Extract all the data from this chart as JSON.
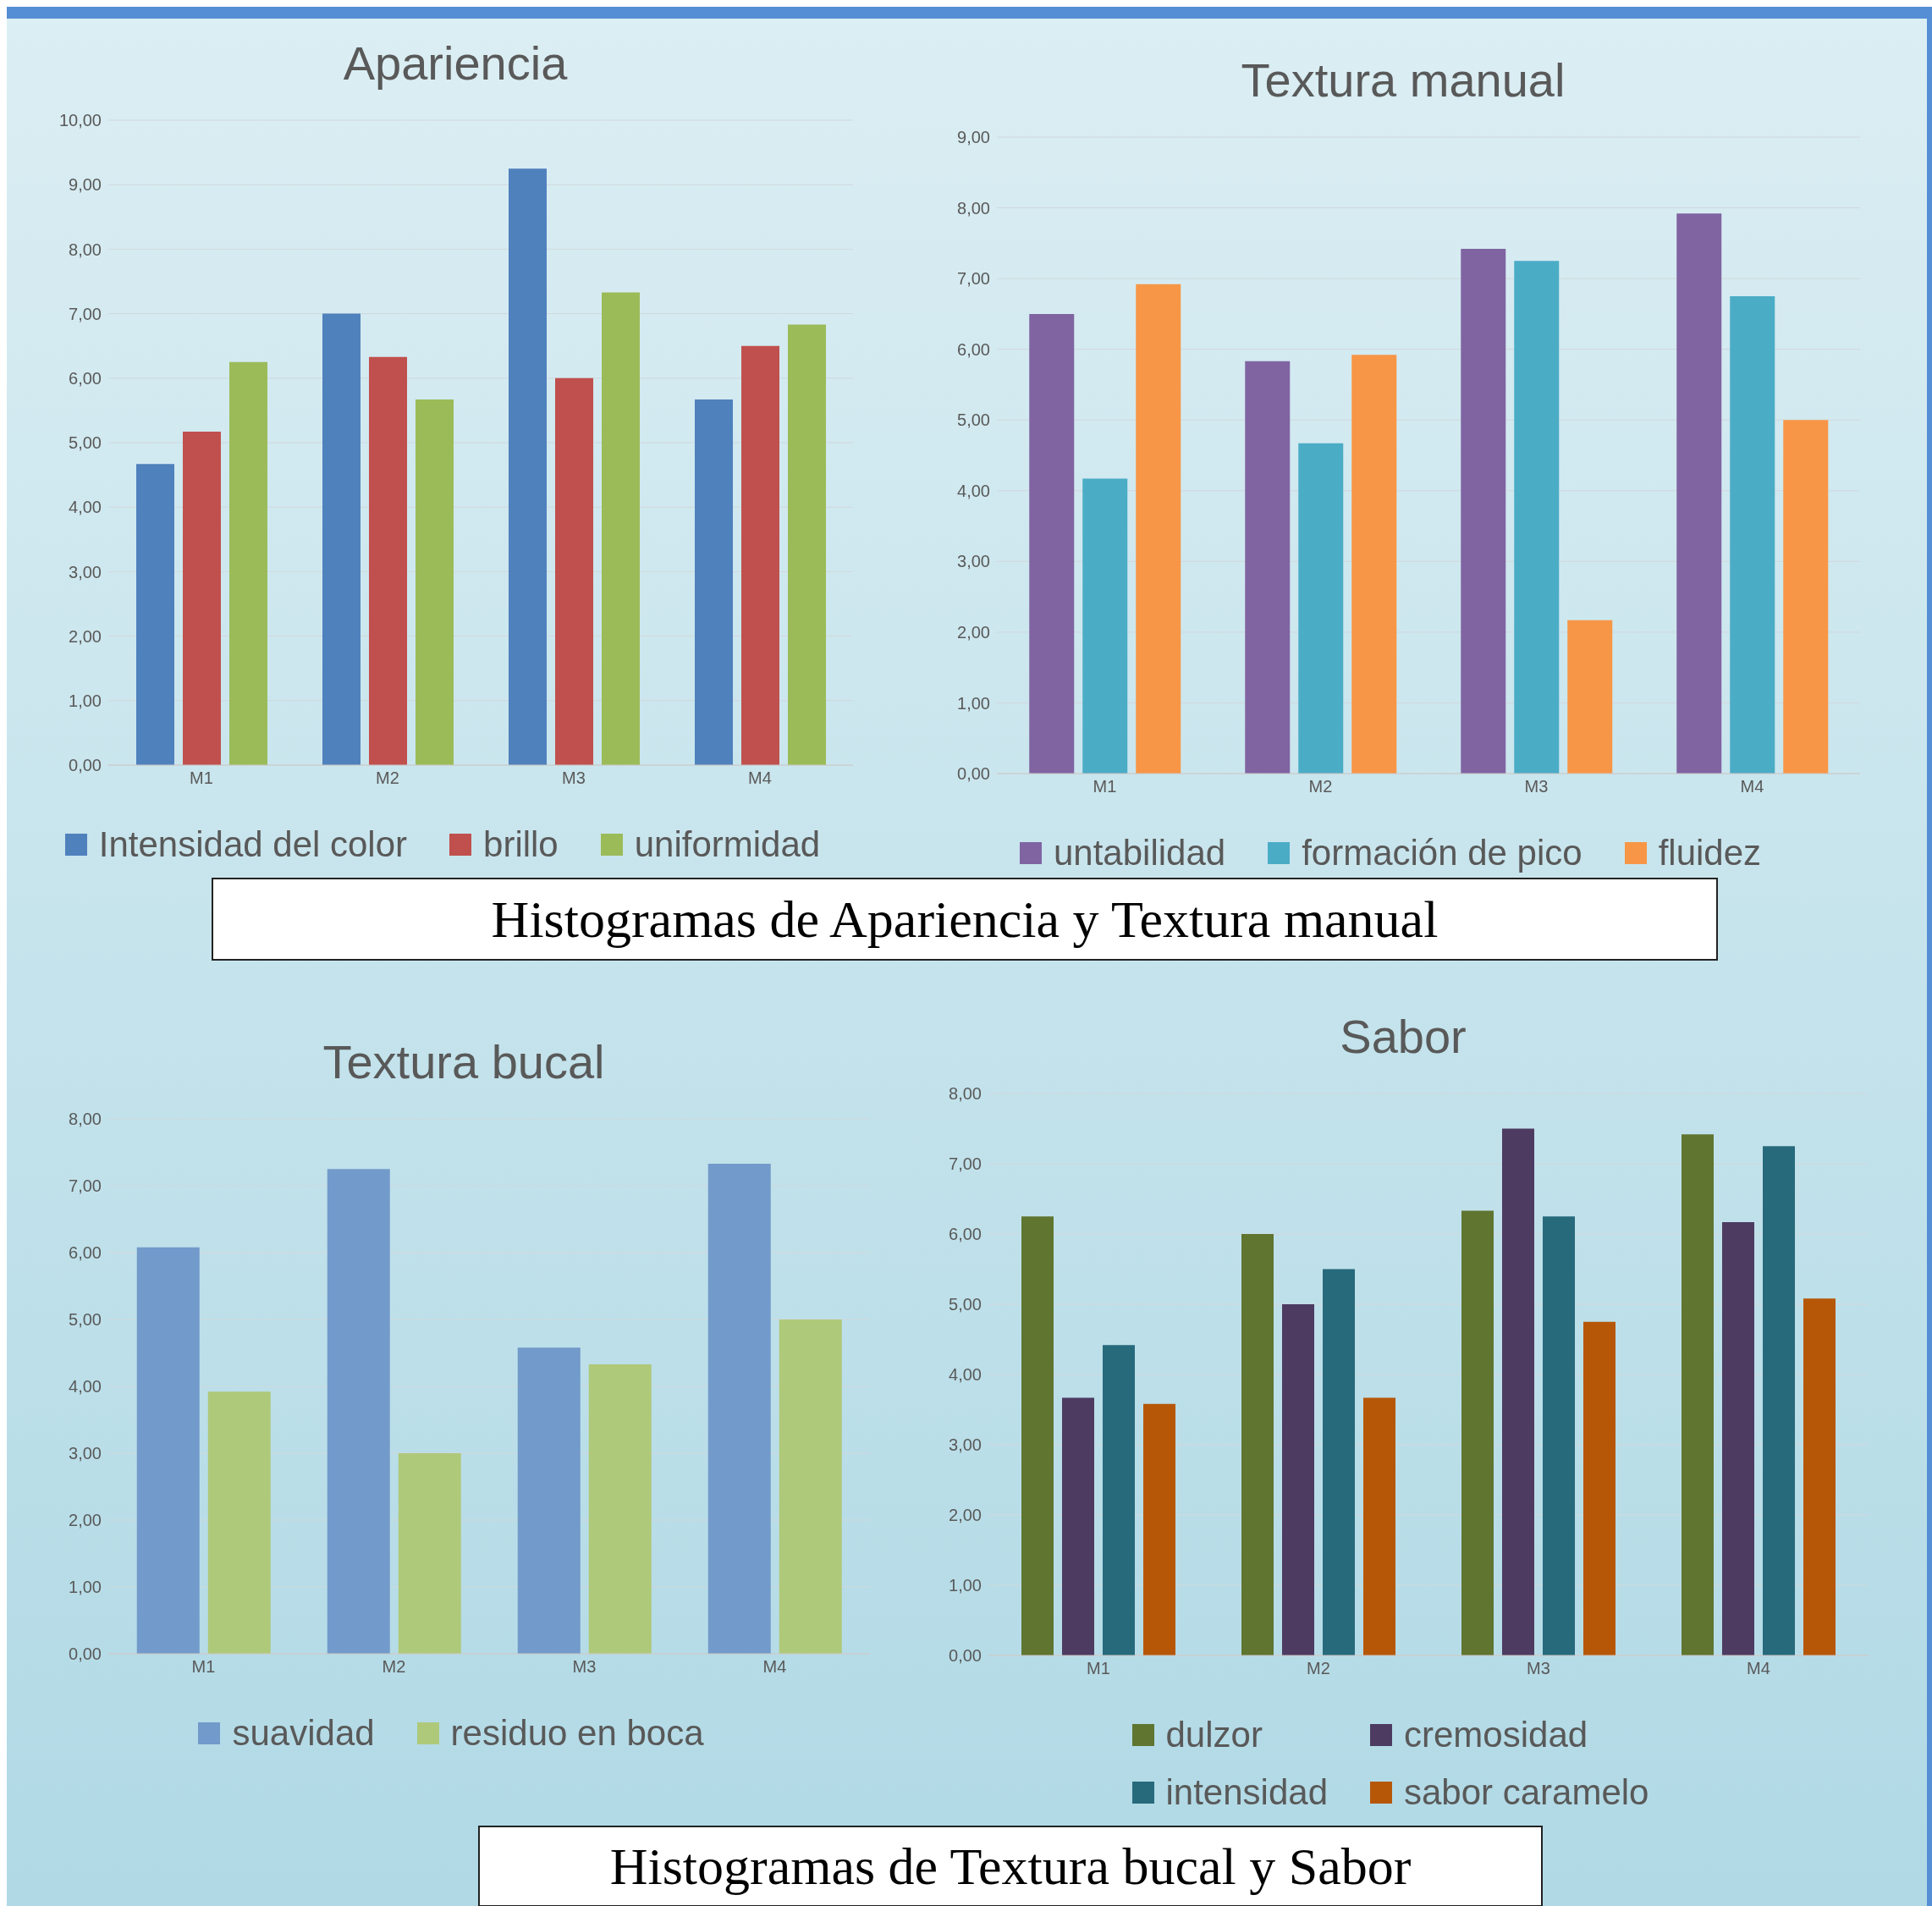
{
  "chart_data": [
    {
      "type": "bar",
      "title": "Apariencia",
      "categories": [
        "M1",
        "M2",
        "M3",
        "M4"
      ],
      "series": [
        {
          "name": "Intensidad del color",
          "color": "#4f81bd",
          "values": [
            4.67,
            7.0,
            9.25,
            5.67
          ]
        },
        {
          "name": "brillo",
          "color": "#c0504d",
          "values": [
            5.17,
            6.33,
            6.0,
            6.5
          ]
        },
        {
          "name": "uniformidad",
          "color": "#9bbb59",
          "values": [
            6.25,
            5.67,
            7.33,
            6.83
          ]
        }
      ],
      "ylim": [
        0,
        10
      ],
      "yticks": [
        {
          "value": 0,
          "label": "0,00"
        },
        {
          "value": 1,
          "label": "1,00"
        },
        {
          "value": 2,
          "label": "2,00"
        },
        {
          "value": 3,
          "label": "3,00"
        },
        {
          "value": 4,
          "label": "4,00"
        },
        {
          "value": 5,
          "label": "5,00"
        },
        {
          "value": 6,
          "label": "6,00"
        },
        {
          "value": 7,
          "label": "7,00"
        },
        {
          "value": 8,
          "label": "8,00"
        },
        {
          "value": 9,
          "label": "9,00"
        },
        {
          "value": 10,
          "label": "10,00"
        }
      ],
      "grid": "y",
      "legend": "bottom",
      "annotations": [
        "Histogramas de Apariencia y Textura manual"
      ]
    },
    {
      "type": "bar",
      "title": "Textura manual",
      "categories": [
        "M1",
        "M2",
        "M3",
        "M4"
      ],
      "series": [
        {
          "name": "untabilidad",
          "color": "#8064a2",
          "values": [
            6.5,
            5.83,
            7.42,
            7.92
          ]
        },
        {
          "name": "formación de pico",
          "color": "#4bacc6",
          "values": [
            4.17,
            4.67,
            7.25,
            6.75
          ]
        },
        {
          "name": "fluidez",
          "color": "#f79646",
          "values": [
            6.92,
            5.92,
            2.17,
            5.0
          ]
        }
      ],
      "ylim": [
        0,
        9
      ],
      "yticks": [
        {
          "value": 0,
          "label": "0,00"
        },
        {
          "value": 1,
          "label": "1,00"
        },
        {
          "value": 2,
          "label": "2,00"
        },
        {
          "value": 3,
          "label": "3,00"
        },
        {
          "value": 4,
          "label": "4,00"
        },
        {
          "value": 5,
          "label": "5,00"
        },
        {
          "value": 6,
          "label": "6,00"
        },
        {
          "value": 7,
          "label": "7,00"
        },
        {
          "value": 8,
          "label": "8,00"
        },
        {
          "value": 9,
          "label": "9,00"
        }
      ],
      "grid": "y",
      "legend": "bottom"
    },
    {
      "type": "bar",
      "title": "Textura bucal",
      "categories": [
        "M1",
        "M2",
        "M3",
        "M4"
      ],
      "series": [
        {
          "name": "suavidad",
          "color": "#729aca",
          "values": [
            6.08,
            7.25,
            4.58,
            7.33
          ]
        },
        {
          "name": "residuo en boca",
          "color": "#afc97a",
          "values": [
            3.92,
            3.0,
            4.33,
            5.0
          ]
        }
      ],
      "ylim": [
        0,
        8
      ],
      "yticks": [
        {
          "value": 0,
          "label": "0,00"
        },
        {
          "value": 1,
          "label": "1,00"
        },
        {
          "value": 2,
          "label": "2,00"
        },
        {
          "value": 3,
          "label": "3,00"
        },
        {
          "value": 4,
          "label": "4,00"
        },
        {
          "value": 5,
          "label": "5,00"
        },
        {
          "value": 6,
          "label": "6,00"
        },
        {
          "value": 7,
          "label": "7,00"
        },
        {
          "value": 8,
          "label": "8,00"
        }
      ],
      "grid": "y",
      "legend": "bottom",
      "annotations": [
        "Histogramas de Textura bucal y Sabor"
      ]
    },
    {
      "type": "bar",
      "title": "Sabor",
      "categories": [
        "M1",
        "M2",
        "M3",
        "M4"
      ],
      "series": [
        {
          "name": "dulzor",
          "color": "#5f7530",
          "values": [
            6.25,
            6.0,
            6.33,
            7.42
          ]
        },
        {
          "name": "cremosidad",
          "color": "#4d3b62",
          "values": [
            3.67,
            5.0,
            7.5,
            6.17
          ]
        },
        {
          "name": "intensidad",
          "color": "#276a7c",
          "values": [
            4.42,
            5.5,
            6.25,
            7.25
          ]
        },
        {
          "name": "sabor caramelo",
          "color": "#b65708",
          "values": [
            3.58,
            3.67,
            4.75,
            5.08
          ]
        }
      ],
      "ylim": [
        0,
        8
      ],
      "yticks": [
        {
          "value": 0,
          "label": "0,00"
        },
        {
          "value": 1,
          "label": "1,00"
        },
        {
          "value": 2,
          "label": "2,00"
        },
        {
          "value": 3,
          "label": "3,00"
        },
        {
          "value": 4,
          "label": "4,00"
        },
        {
          "value": 5,
          "label": "5,00"
        },
        {
          "value": 6,
          "label": "6,00"
        },
        {
          "value": 7,
          "label": "7,00"
        },
        {
          "value": 8,
          "label": "8,00"
        }
      ],
      "grid": "y",
      "legend": "bottom"
    }
  ]
}
